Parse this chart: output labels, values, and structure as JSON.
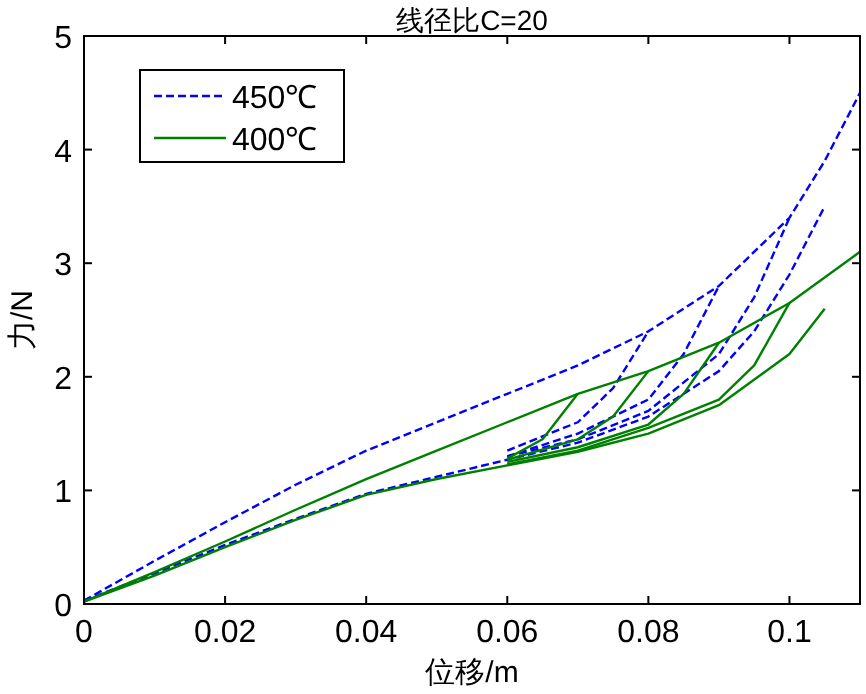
{
  "chart_data": {
    "type": "line",
    "title": "线径比C=20",
    "xlabel": "位移/m",
    "ylabel": "力/N",
    "xlim": [
      0,
      0.11
    ],
    "ylim": [
      0,
      5
    ],
    "xticks": [
      0,
      0.02,
      0.04,
      0.06,
      0.08,
      0.1
    ],
    "yticks": [
      0,
      1,
      2,
      3,
      4,
      5
    ],
    "grid": false,
    "legend": "top left",
    "series": [
      {
        "name": "450℃",
        "color": "#0000ff",
        "line_style": "dashed",
        "x": [
          0,
          0.01,
          0.02,
          0.03,
          0.04,
          0.05,
          0.06,
          0.07,
          0.08,
          0.09,
          0.1,
          0.105,
          0.11
        ],
        "values": [
          0.03,
          0.38,
          0.72,
          1.05,
          1.35,
          1.6,
          1.85,
          2.1,
          2.4,
          2.8,
          3.4,
          3.9,
          4.5
        ]
      },
      {
        "color": "#0000ff",
        "line_style": "dashed",
        "x": [
          0.06,
          0.07,
          0.075,
          0.08
        ],
        "values": [
          1.35,
          1.6,
          1.9,
          2.4
        ]
      },
      {
        "color": "#0000ff",
        "line_style": "dashed",
        "x": [
          0.06,
          0.07,
          0.08,
          0.085,
          0.09
        ],
        "values": [
          1.3,
          1.5,
          1.8,
          2.2,
          2.8
        ]
      },
      {
        "color": "#0000ff",
        "line_style": "dashed",
        "x": [
          0.06,
          0.07,
          0.08,
          0.09,
          0.095,
          0.1
        ],
        "values": [
          1.3,
          1.45,
          1.7,
          2.2,
          2.7,
          3.4
        ]
      },
      {
        "color": "#0000ff",
        "line_style": "dashed",
        "x": [
          0,
          0.01,
          0.02,
          0.03,
          0.04,
          0.05,
          0.06,
          0.07,
          0.08,
          0.09,
          0.095,
          0.1,
          0.105
        ],
        "values": [
          0.03,
          0.27,
          0.52,
          0.75,
          0.97,
          1.12,
          1.27,
          1.42,
          1.65,
          2.05,
          2.4,
          2.9,
          3.5
        ]
      },
      {
        "name": "400℃",
        "color": "#008000",
        "line_style": "solid",
        "x": [
          0,
          0.01,
          0.02,
          0.03,
          0.04,
          0.05,
          0.06,
          0.07,
          0.08,
          0.09,
          0.1,
          0.11
        ],
        "values": [
          0.02,
          0.28,
          0.55,
          0.83,
          1.1,
          1.35,
          1.6,
          1.85,
          2.05,
          2.3,
          2.65,
          3.1
        ]
      },
      {
        "color": "#008000",
        "line_style": "solid",
        "x": [
          0.06,
          0.065,
          0.07
        ],
        "values": [
          1.28,
          1.45,
          1.85
        ]
      },
      {
        "color": "#008000",
        "line_style": "solid",
        "x": [
          0.06,
          0.07,
          0.075,
          0.08
        ],
        "values": [
          1.27,
          1.45,
          1.65,
          2.05
        ]
      },
      {
        "color": "#008000",
        "line_style": "solid",
        "x": [
          0.06,
          0.07,
          0.08,
          0.085,
          0.09
        ],
        "values": [
          1.25,
          1.38,
          1.58,
          1.85,
          2.3
        ]
      },
      {
        "color": "#008000",
        "line_style": "solid",
        "x": [
          0.06,
          0.07,
          0.08,
          0.09,
          0.095,
          0.1
        ],
        "values": [
          1.23,
          1.35,
          1.55,
          1.8,
          2.1,
          2.65
        ]
      },
      {
        "color": "#008000",
        "line_style": "solid",
        "x": [
          0,
          0.01,
          0.02,
          0.03,
          0.04,
          0.05,
          0.06,
          0.07,
          0.08,
          0.09,
          0.1,
          0.105
        ],
        "values": [
          0.02,
          0.25,
          0.5,
          0.74,
          0.96,
          1.1,
          1.22,
          1.34,
          1.5,
          1.75,
          2.2,
          2.6
        ]
      }
    ]
  }
}
